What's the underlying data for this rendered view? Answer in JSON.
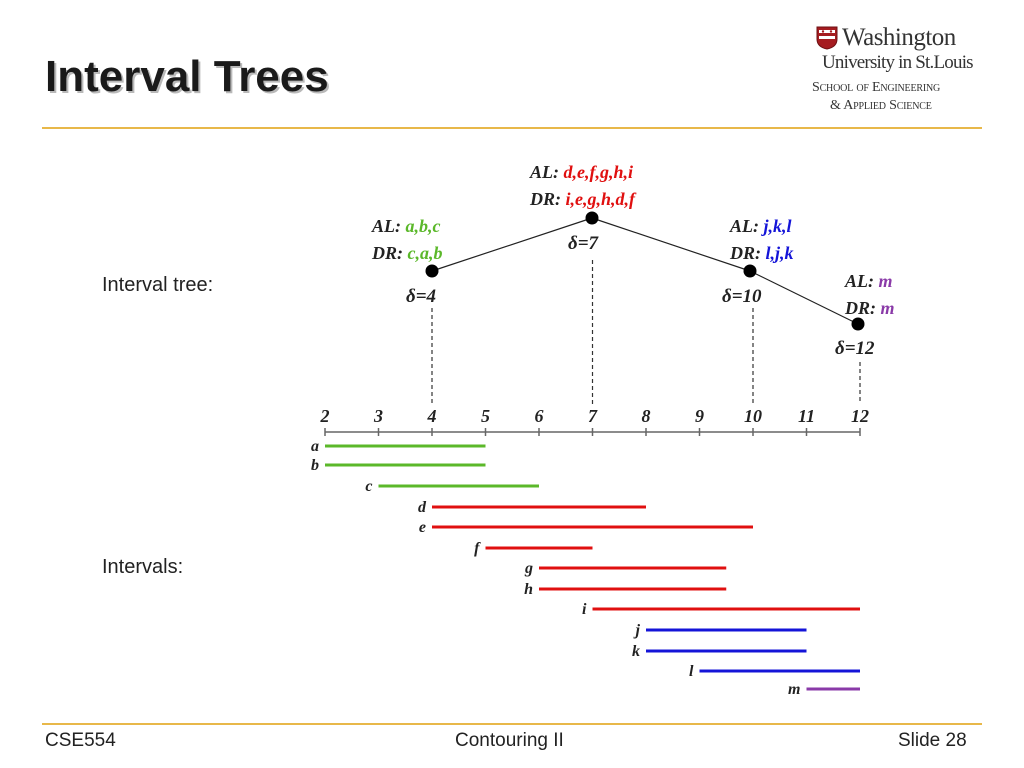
{
  "title": "Interval Trees",
  "logo": {
    "line1": "Washington",
    "line2": "University in St.Louis",
    "line3": "School of Engineering",
    "line4": "& Applied Science"
  },
  "labels": {
    "tree": "Interval tree:",
    "intervals": "Intervals:"
  },
  "footer": {
    "left": "CSE554",
    "center": "Contouring II",
    "right": "Slide 28"
  },
  "colors": {
    "green": "#5bb82a",
    "red": "#e01010",
    "blue": "#1414d8",
    "purple": "#8a3aa8",
    "rule": "#e8b84a"
  },
  "axis": {
    "ticks": [
      2,
      3,
      4,
      5,
      6,
      7,
      8,
      9,
      10,
      11,
      12
    ]
  },
  "tree": {
    "nodes": [
      {
        "id": "n7",
        "delta": "δ=7",
        "al_prefix": "AL: ",
        "al": "d,e,f,g,h,i",
        "dr_prefix": "DR: ",
        "dr": "i,e,g,h,d,f",
        "color": "red",
        "split": 7
      },
      {
        "id": "n4",
        "delta": "δ=4",
        "al_prefix": "AL: ",
        "al": "a,b,c",
        "dr_prefix": "DR: ",
        "dr": "c,a,b",
        "color": "green",
        "split": 4
      },
      {
        "id": "n10",
        "delta": "δ=10",
        "al_prefix": "AL: ",
        "al": "j,k,l",
        "dr_prefix": "DR: ",
        "dr": "l,j,k",
        "color": "blue",
        "split": 10
      },
      {
        "id": "n12",
        "delta": "δ=12",
        "al_prefix": "AL: ",
        "al": "m",
        "dr_prefix": "DR: ",
        "dr": "m",
        "color": "purple",
        "split": 12
      }
    ],
    "edges": [
      [
        "n7",
        "n4"
      ],
      [
        "n7",
        "n10"
      ],
      [
        "n10",
        "n12"
      ]
    ]
  },
  "intervals": [
    {
      "name": "a",
      "start": 2,
      "end": 5,
      "color": "green"
    },
    {
      "name": "b",
      "start": 2,
      "end": 5,
      "color": "green"
    },
    {
      "name": "c",
      "start": 3,
      "end": 6,
      "color": "green"
    },
    {
      "name": "d",
      "start": 4,
      "end": 8,
      "color": "red"
    },
    {
      "name": "e",
      "start": 4,
      "end": 10,
      "color": "red"
    },
    {
      "name": "f",
      "start": 5,
      "end": 7,
      "color": "red"
    },
    {
      "name": "g",
      "start": 6,
      "end": 9.5,
      "color": "red"
    },
    {
      "name": "h",
      "start": 6,
      "end": 9.5,
      "color": "red"
    },
    {
      "name": "i",
      "start": 7,
      "end": 12,
      "color": "red"
    },
    {
      "name": "j",
      "start": 8,
      "end": 11,
      "color": "blue"
    },
    {
      "name": "k",
      "start": 8,
      "end": 11,
      "color": "blue"
    },
    {
      "name": "l",
      "start": 9,
      "end": 12,
      "color": "blue"
    },
    {
      "name": "m",
      "start": 11,
      "end": 12,
      "color": "purple"
    }
  ]
}
